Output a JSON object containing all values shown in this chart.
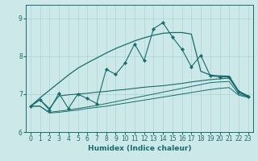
{
  "xlabel": "Humidex (Indice chaleur)",
  "xlim": [
    -0.5,
    23.5
  ],
  "ylim": [
    6.0,
    9.35
  ],
  "yticks": [
    6,
    7,
    8,
    9
  ],
  "xticks": [
    0,
    1,
    2,
    3,
    4,
    5,
    6,
    7,
    8,
    9,
    10,
    11,
    12,
    13,
    14,
    15,
    16,
    17,
    18,
    19,
    20,
    21,
    22,
    23
  ],
  "bg_color": "#cce8e8",
  "line_color": "#1a6b6b",
  "grid_color": "#aad4d4",
  "jagged": [
    6.68,
    6.85,
    6.58,
    7.02,
    6.62,
    7.0,
    6.88,
    6.75,
    7.65,
    7.52,
    7.82,
    8.32,
    7.88,
    8.72,
    8.88,
    8.5,
    8.18,
    7.72,
    8.02,
    7.48,
    7.45,
    7.45,
    7.05,
    6.93
  ],
  "upper_env": [
    6.68,
    6.9,
    7.1,
    7.3,
    7.5,
    7.68,
    7.82,
    7.95,
    8.08,
    8.2,
    8.3,
    8.4,
    8.48,
    8.55,
    8.6,
    8.62,
    8.62,
    8.58,
    7.6,
    7.5,
    7.48,
    7.47,
    7.08,
    6.95
  ],
  "mid_flat": [
    6.68,
    6.85,
    6.62,
    6.95,
    6.98,
    7.0,
    7.02,
    7.05,
    7.07,
    7.1,
    7.12,
    7.15,
    7.18,
    7.2,
    7.22,
    7.25,
    7.28,
    7.32,
    7.35,
    7.38,
    7.4,
    7.42,
    7.05,
    6.95
  ],
  "lower1": [
    6.68,
    6.68,
    6.52,
    6.55,
    6.58,
    6.62,
    6.66,
    6.7,
    6.75,
    6.8,
    6.85,
    6.9,
    6.95,
    7.0,
    7.05,
    7.1,
    7.15,
    7.2,
    7.25,
    7.3,
    7.32,
    7.33,
    7.0,
    6.93
  ],
  "lower2": [
    6.68,
    6.68,
    6.5,
    6.52,
    6.55,
    6.58,
    6.62,
    6.65,
    6.68,
    6.72,
    6.76,
    6.8,
    6.84,
    6.88,
    6.92,
    6.96,
    7.0,
    7.04,
    7.08,
    7.12,
    7.15,
    7.17,
    6.97,
    6.91
  ]
}
